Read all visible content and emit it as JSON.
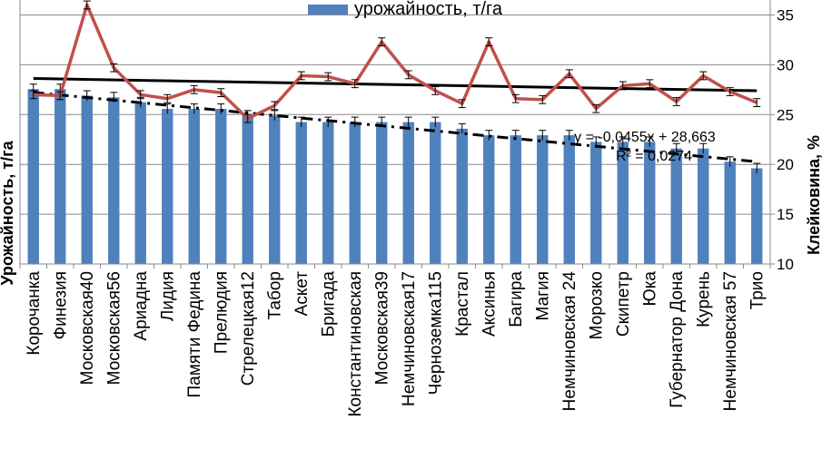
{
  "chart_data": {
    "type": "bar+line",
    "categories": [
      "Корочанка",
      "Финезия",
      "Московская40",
      "Московская56",
      "Ариадна",
      "Лидия",
      "Памяти Федина",
      "Прелюдия",
      "Стрелецкая12",
      "Табор",
      "Аскет",
      "Бригада",
      "Константиновская",
      "Московская39",
      "Немчиновская17",
      "Черноземка115",
      "Крастал",
      "Аксинья",
      "Багира",
      "Магия",
      "Немчиновская 24",
      "Морозко",
      "Скипетр",
      "Юка",
      "Губернатор Дона",
      "Курень",
      "Немчиновская 57",
      "Трио"
    ],
    "series": [
      {
        "name": "урожайность, т/га",
        "type": "bar",
        "axis": "left",
        "color": "#4f81bd",
        "values": [
          5.3,
          5.3,
          5.1,
          5.05,
          4.9,
          4.7,
          4.7,
          4.7,
          4.5,
          4.5,
          4.3,
          4.3,
          4.3,
          4.3,
          4.3,
          4.3,
          4.1,
          3.9,
          3.9,
          3.9,
          3.9,
          3.7,
          3.7,
          3.7,
          3.5,
          3.5,
          3.1,
          2.9
        ],
        "error": 0.15
      },
      {
        "name": "Клейковина, %",
        "type": "line",
        "axis": "right",
        "color": "#c0504d",
        "values": [
          27.0,
          26.9,
          36.0,
          29.7,
          27.0,
          26.6,
          27.5,
          27.2,
          24.6,
          25.9,
          28.9,
          28.8,
          28.1,
          32.3,
          29.0,
          27.4,
          26.1,
          32.3,
          26.6,
          26.5,
          29.1,
          25.6,
          27.9,
          28.1,
          26.3,
          28.9,
          27.3,
          26.2
        ],
        "error": 0.4
      }
    ],
    "trendlines": [
      {
        "series": "урожайность, т/га",
        "type": "linear",
        "style": "dash-dot",
        "start": 5.2,
        "end": 3.1
      },
      {
        "series": "Клейковина, %",
        "type": "linear",
        "style": "solid",
        "intercept": 28.663,
        "slope": -0.0455
      }
    ],
    "equation": "y = -0,0455x + 28,663",
    "r_squared": "R² = 0,0274",
    "legend": "урожайность, т/га",
    "ylabel": "Урожайность, т/га",
    "ylabel_right": "Клейковина, %",
    "y_left_range": [
      0,
      8
    ],
    "y_right_range": [
      10,
      36.5
    ],
    "y_right_ticks": [
      "10",
      "15",
      "20",
      "25",
      "30",
      "35"
    ]
  }
}
